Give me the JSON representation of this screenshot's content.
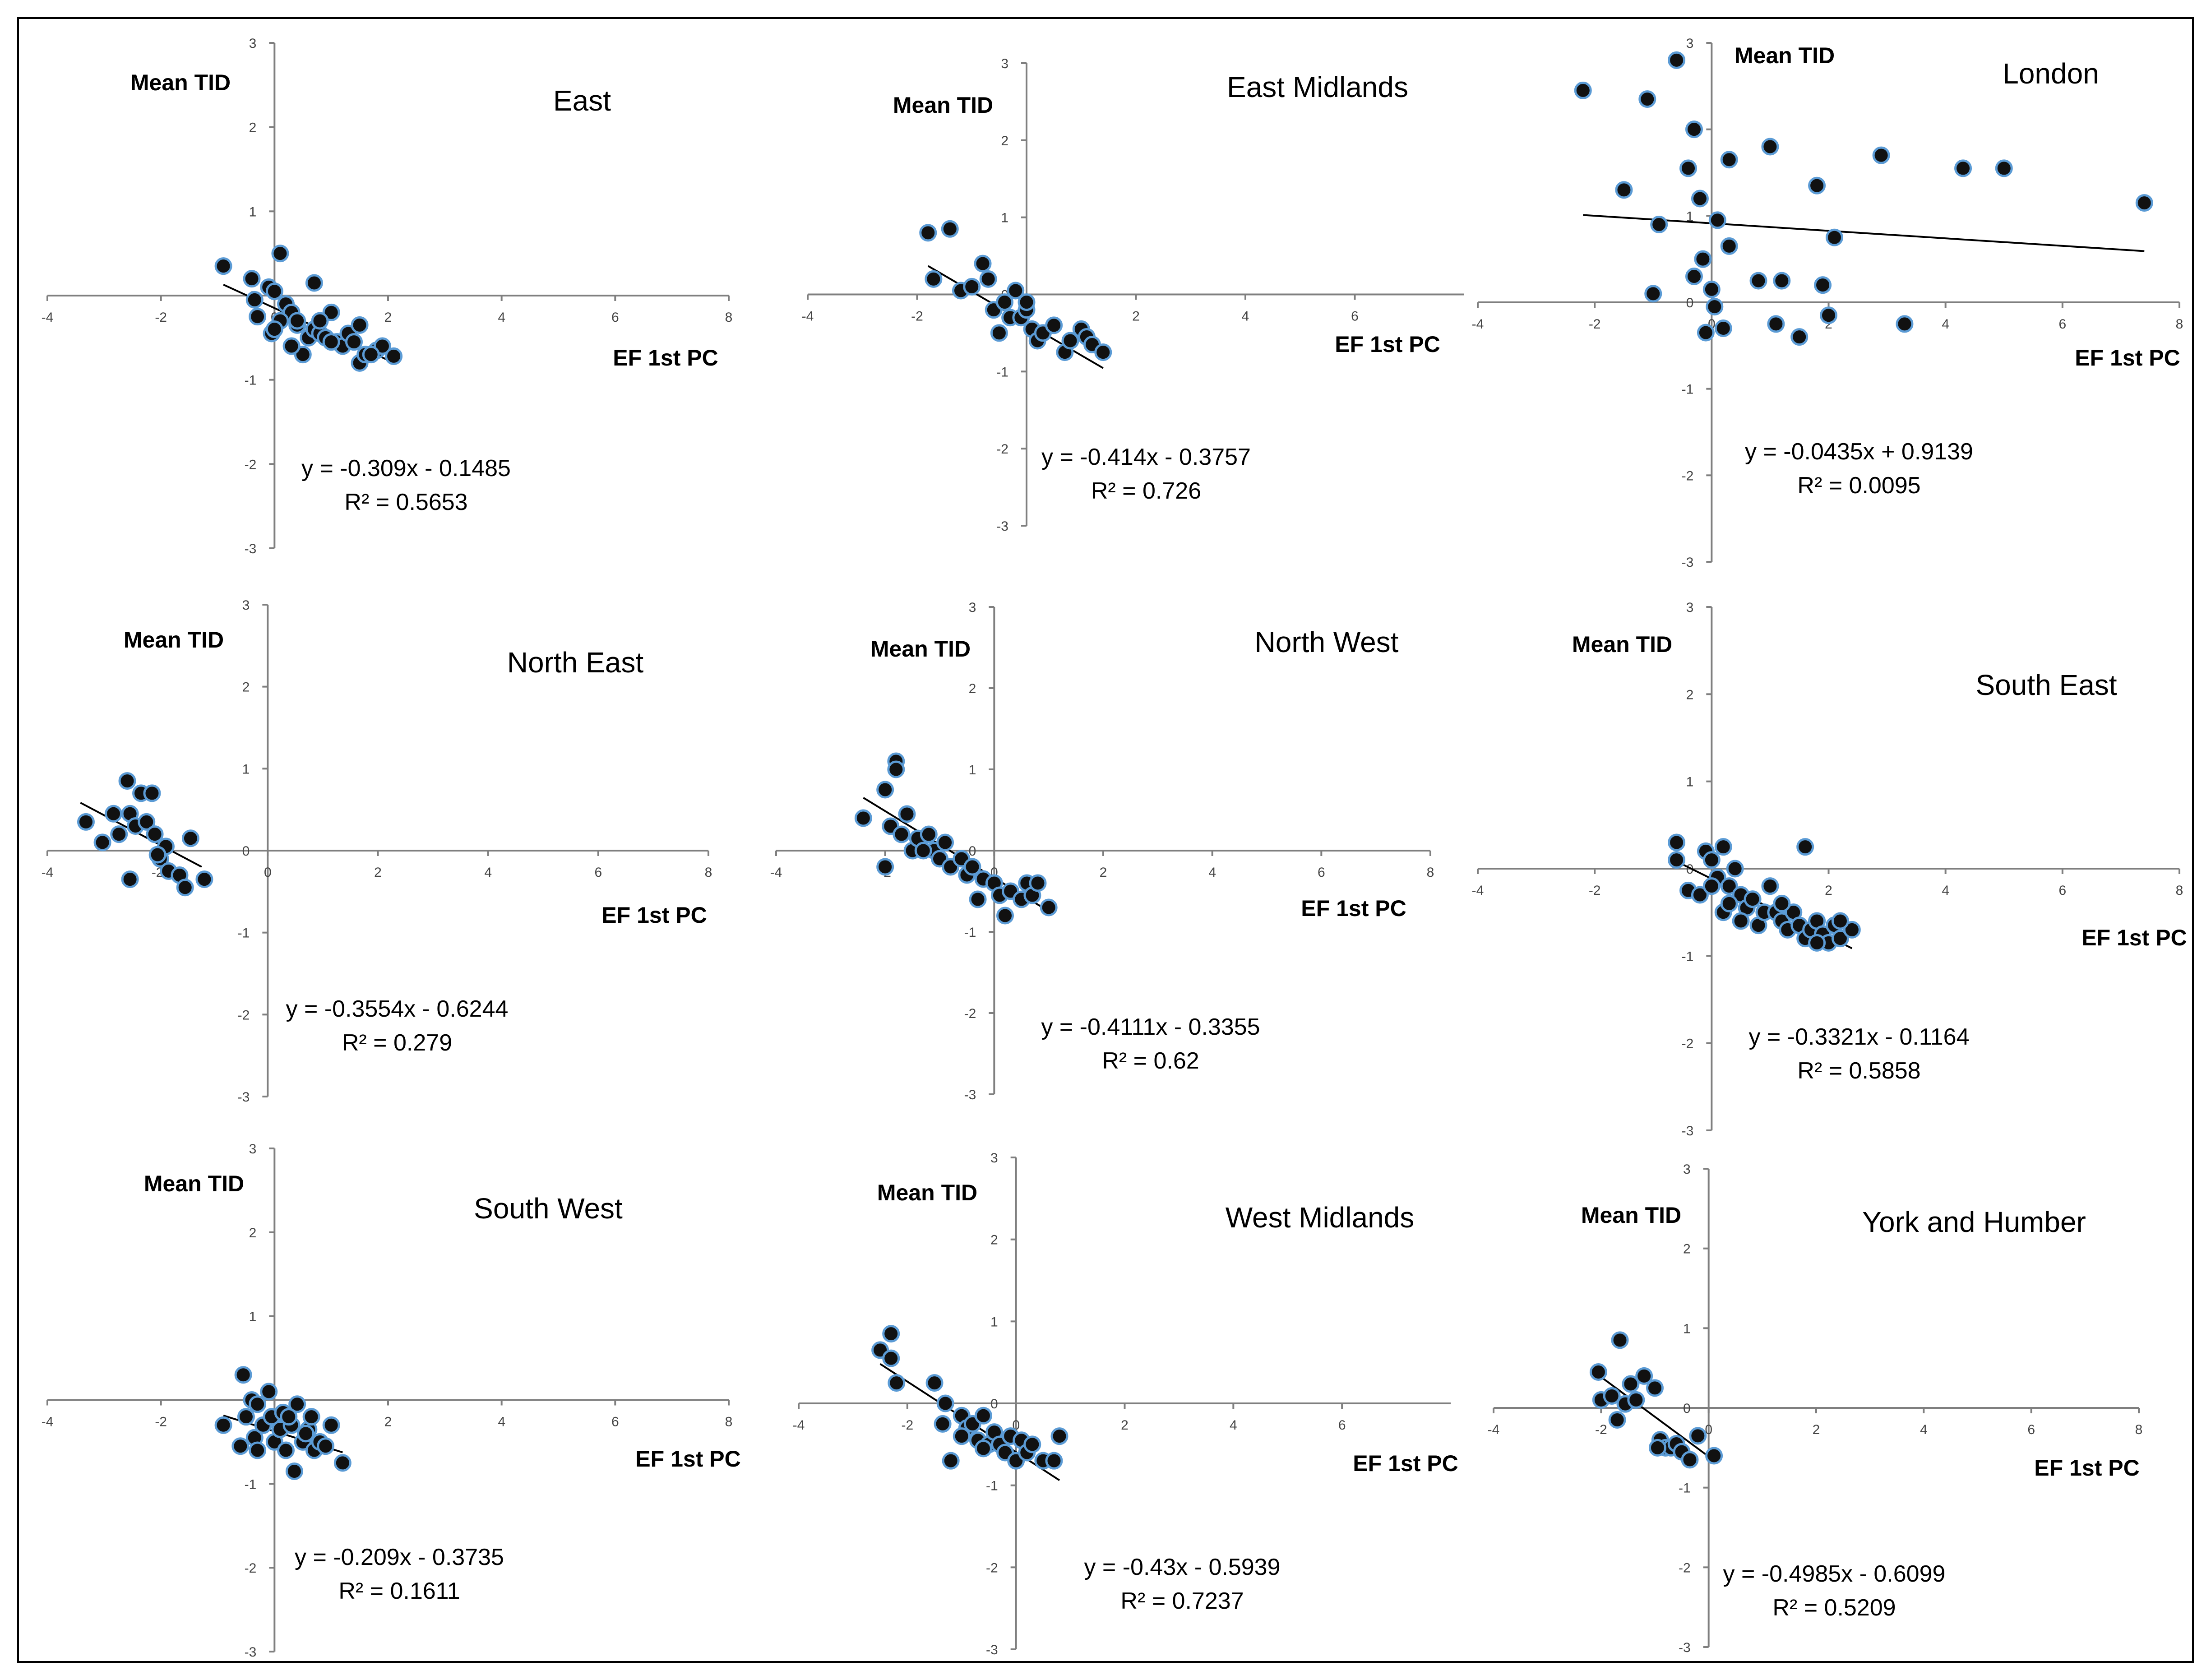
{
  "axis_labels": {
    "x": "EF 1st PC",
    "y": "Mean TID"
  },
  "colors": {
    "marker_fill": "#111111",
    "marker_edge": "#5b9bd5",
    "axis": "#7f7f7f",
    "trendline": "#000000"
  },
  "chart_data": [
    {
      "type": "scatter",
      "title": "East",
      "xlabel": "EF 1st PC",
      "ylabel": "Mean TID",
      "xlim": [
        -4,
        8
      ],
      "ylim": [
        -3,
        3
      ],
      "x_ticks": [
        -4,
        -2,
        0,
        2,
        4,
        6,
        8
      ],
      "y_ticks": [
        -3,
        -2,
        -1,
        0,
        1,
        2,
        3
      ],
      "equation": "y = -0.309x - 0.1485",
      "r2": "R² = 0.5653",
      "trend": {
        "slope": -0.309,
        "intercept": -0.1485,
        "x_range": [
          -0.9,
          2.1
        ]
      },
      "points": [
        [
          -0.9,
          0.35
        ],
        [
          -0.4,
          0.2
        ],
        [
          -0.35,
          -0.05
        ],
        [
          -0.3,
          -0.25
        ],
        [
          -0.1,
          0.1
        ],
        [
          0.0,
          0.05
        ],
        [
          0.1,
          0.5
        ],
        [
          -0.05,
          -0.45
        ],
        [
          0.2,
          -0.1
        ],
        [
          0.3,
          -0.2
        ],
        [
          0.1,
          -0.3
        ],
        [
          0.4,
          -0.35
        ],
        [
          0.5,
          -0.7
        ],
        [
          0.6,
          -0.5
        ],
        [
          0.7,
          -0.4
        ],
        [
          0.8,
          -0.45
        ],
        [
          0.9,
          -0.5
        ],
        [
          1.0,
          -0.2
        ],
        [
          1.1,
          -0.55
        ],
        [
          1.2,
          -0.6
        ],
        [
          1.3,
          -0.45
        ],
        [
          1.4,
          -0.55
        ],
        [
          1.5,
          -0.35
        ],
        [
          1.5,
          -0.8
        ],
        [
          1.6,
          -0.7
        ],
        [
          1.8,
          -0.65
        ],
        [
          1.9,
          -0.6
        ],
        [
          2.1,
          -0.72
        ],
        [
          0.7,
          0.15
        ],
        [
          0.0,
          -0.4
        ],
        [
          0.3,
          -0.6
        ],
        [
          0.8,
          -0.3
        ],
        [
          1.0,
          -0.55
        ],
        [
          1.7,
          -0.7
        ],
        [
          0.4,
          -0.3
        ]
      ]
    },
    {
      "type": "scatter",
      "title": "East Midlands",
      "xlabel": "EF 1st PC",
      "ylabel": "Mean TID",
      "xlim": [
        -4,
        8
      ],
      "ylim": [
        -3,
        3
      ],
      "x_ticks": [
        -4,
        -2,
        0,
        2,
        4,
        6
      ],
      "y_ticks": [
        -3,
        -2,
        -1,
        0,
        1,
        2,
        3
      ],
      "equation": "y = -0.414x - 0.3757",
      "r2": "R² = 0.726",
      "trend": {
        "slope": -0.414,
        "intercept": -0.3757,
        "x_range": [
          -1.8,
          1.4
        ]
      },
      "points": [
        [
          -1.8,
          0.8
        ],
        [
          -1.7,
          0.2
        ],
        [
          -1.4,
          0.85
        ],
        [
          -1.2,
          0.05
        ],
        [
          -1.0,
          0.1
        ],
        [
          -0.8,
          0.4
        ],
        [
          -0.7,
          0.2
        ],
        [
          -0.6,
          -0.2
        ],
        [
          -0.4,
          -0.1
        ],
        [
          -0.3,
          -0.3
        ],
        [
          -0.2,
          0.05
        ],
        [
          -0.1,
          -0.3
        ],
        [
          0.0,
          -0.2
        ],
        [
          0.1,
          -0.45
        ],
        [
          0.2,
          -0.6
        ],
        [
          0.3,
          -0.5
        ],
        [
          0.5,
          -0.4
        ],
        [
          0.7,
          -0.75
        ],
        [
          0.8,
          -0.6
        ],
        [
          1.0,
          -0.45
        ],
        [
          1.1,
          -0.55
        ],
        [
          1.2,
          -0.65
        ],
        [
          1.4,
          -0.75
        ],
        [
          -0.5,
          -0.5
        ],
        [
          0.0,
          -0.1
        ]
      ]
    },
    {
      "type": "scatter",
      "title": "London",
      "xlabel": "EF 1st PC",
      "ylabel": "Mean TID",
      "xlim": [
        -4,
        8
      ],
      "ylim": [
        -3,
        3
      ],
      "x_ticks": [
        -4,
        -2,
        0,
        2,
        4,
        6,
        8
      ],
      "y_ticks": [
        -3,
        -2,
        -1,
        0,
        1,
        2,
        3
      ],
      "equation": "y = -0.0435x + 0.9139",
      "r2": "R² = 0.0095",
      "trend": {
        "slope": -0.0435,
        "intercept": 0.9139,
        "x_range": [
          -2.2,
          7.4
        ]
      },
      "points": [
        [
          -2.2,
          2.45
        ],
        [
          -1.5,
          1.3
        ],
        [
          -1.1,
          2.35
        ],
        [
          -0.6,
          2.8
        ],
        [
          -0.9,
          0.9
        ],
        [
          -0.4,
          1.55
        ],
        [
          -0.3,
          2.0
        ],
        [
          -0.2,
          1.2
        ],
        [
          0.1,
          0.95
        ],
        [
          0.3,
          1.65
        ],
        [
          -0.3,
          0.3
        ],
        [
          -0.15,
          0.5
        ],
        [
          0.0,
          0.15
        ],
        [
          0.05,
          -0.05
        ],
        [
          -0.1,
          -0.35
        ],
        [
          0.2,
          -0.3
        ],
        [
          0.3,
          0.65
        ],
        [
          0.8,
          0.25
        ],
        [
          1.0,
          1.8
        ],
        [
          1.2,
          0.25
        ],
        [
          1.1,
          -0.25
        ],
        [
          1.5,
          -0.4
        ],
        [
          1.8,
          1.35
        ],
        [
          1.9,
          0.2
        ],
        [
          2.0,
          -0.15
        ],
        [
          2.1,
          0.75
        ],
        [
          2.9,
          1.7
        ],
        [
          3.3,
          -0.25
        ],
        [
          4.3,
          1.55
        ],
        [
          5.0,
          1.55
        ],
        [
          7.4,
          1.15
        ],
        [
          -1.0,
          0.1
        ]
      ]
    },
    {
      "type": "scatter",
      "title": "North East",
      "xlabel": "EF 1st PC",
      "ylabel": "Mean TID",
      "xlim": [
        -4,
        8
      ],
      "ylim": [
        -3,
        3
      ],
      "x_ticks": [
        -4,
        -2,
        0,
        2,
        4,
        6,
        8
      ],
      "y_ticks": [
        -3,
        -2,
        -1,
        0,
        1,
        2,
        3
      ],
      "equation": "y = -0.3554x - 0.6244",
      "r2": "R² = 0.279",
      "trend": {
        "slope": -0.3554,
        "intercept": -0.6244,
        "x_range": [
          -3.4,
          -1.2
        ]
      },
      "points": [
        [
          -3.3,
          0.35
        ],
        [
          -3.0,
          0.1
        ],
        [
          -2.8,
          0.45
        ],
        [
          -2.7,
          0.2
        ],
        [
          -2.55,
          0.85
        ],
        [
          -2.5,
          0.45
        ],
        [
          -2.4,
          0.3
        ],
        [
          -2.3,
          0.7
        ],
        [
          -2.2,
          0.35
        ],
        [
          -2.1,
          0.7
        ],
        [
          -2.05,
          0.2
        ],
        [
          -1.95,
          -0.1
        ],
        [
          -1.85,
          0.05
        ],
        [
          -1.8,
          -0.25
        ],
        [
          -1.6,
          -0.3
        ],
        [
          -1.5,
          -0.45
        ],
        [
          -1.4,
          0.15
        ],
        [
          -1.15,
          -0.35
        ],
        [
          -2.5,
          -0.35
        ],
        [
          -2.0,
          -0.05
        ]
      ]
    },
    {
      "type": "scatter",
      "title": "North West",
      "xlabel": "EF 1st PC",
      "ylabel": "Mean TID",
      "xlim": [
        -4,
        8
      ],
      "ylim": [
        -3,
        3
      ],
      "x_ticks": [
        -4,
        -2,
        0,
        2,
        4,
        6,
        8
      ],
      "y_ticks": [
        -3,
        -2,
        -1,
        0,
        1,
        2,
        3
      ],
      "equation": "y = -0.4111x - 0.3355",
      "r2": "R² = 0.62",
      "trend": {
        "slope": -0.4111,
        "intercept": -0.3355,
        "x_range": [
          -2.4,
          1.0
        ]
      },
      "points": [
        [
          -2.4,
          0.4
        ],
        [
          -2.0,
          0.75
        ],
        [
          -1.8,
          1.1
        ],
        [
          -1.8,
          1.0
        ],
        [
          -1.9,
          0.3
        ],
        [
          -1.7,
          0.2
        ],
        [
          -1.6,
          0.45
        ],
        [
          -1.5,
          0.0
        ],
        [
          -1.4,
          0.15
        ],
        [
          -1.2,
          0.2
        ],
        [
          -1.1,
          0.0
        ],
        [
          -1.0,
          -0.1
        ],
        [
          -0.9,
          0.1
        ],
        [
          -0.8,
          -0.2
        ],
        [
          -0.6,
          -0.1
        ],
        [
          -0.5,
          -0.3
        ],
        [
          -0.4,
          -0.2
        ],
        [
          -0.3,
          -0.6
        ],
        [
          -0.2,
          -0.35
        ],
        [
          0.0,
          -0.4
        ],
        [
          0.1,
          -0.55
        ],
        [
          0.2,
          -0.8
        ],
        [
          0.3,
          -0.5
        ],
        [
          0.5,
          -0.6
        ],
        [
          0.6,
          -0.4
        ],
        [
          0.7,
          -0.55
        ],
        [
          0.8,
          -0.4
        ],
        [
          1.0,
          -0.7
        ],
        [
          -2.0,
          -0.2
        ],
        [
          -1.3,
          0.0
        ]
      ]
    },
    {
      "type": "scatter",
      "title": "South East",
      "xlabel": "EF 1st PC",
      "ylabel": "Mean TID",
      "xlim": [
        -4,
        8
      ],
      "ylim": [
        -3,
        3
      ],
      "x_ticks": [
        -4,
        -2,
        0,
        2,
        4,
        6,
        8
      ],
      "y_ticks": [
        -3,
        -2,
        -1,
        0,
        1,
        2,
        3
      ],
      "equation": "y = -0.3321x - 0.1164",
      "r2": "R² = 0.5858",
      "trend": {
        "slope": -0.3321,
        "intercept": -0.1164,
        "x_range": [
          -0.6,
          2.4
        ]
      },
      "points": [
        [
          -0.6,
          0.3
        ],
        [
          -0.6,
          0.1
        ],
        [
          -0.4,
          -0.25
        ],
        [
          -0.2,
          -0.3
        ],
        [
          -0.1,
          0.2
        ],
        [
          0.0,
          0.1
        ],
        [
          0.1,
          -0.1
        ],
        [
          0.2,
          0.25
        ],
        [
          0.2,
          -0.5
        ],
        [
          0.3,
          -0.2
        ],
        [
          0.4,
          0.0
        ],
        [
          0.5,
          -0.3
        ],
        [
          0.6,
          -0.45
        ],
        [
          0.7,
          -0.35
        ],
        [
          0.8,
          -0.65
        ],
        [
          0.9,
          -0.5
        ],
        [
          1.0,
          -0.2
        ],
        [
          1.1,
          -0.5
        ],
        [
          1.2,
          -0.6
        ],
        [
          1.3,
          -0.7
        ],
        [
          1.4,
          -0.5
        ],
        [
          1.5,
          -0.65
        ],
        [
          1.6,
          -0.8
        ],
        [
          1.6,
          0.25
        ],
        [
          1.7,
          -0.7
        ],
        [
          1.8,
          -0.6
        ],
        [
          1.9,
          -0.75
        ],
        [
          2.0,
          -0.85
        ],
        [
          2.1,
          -0.65
        ],
        [
          2.2,
          -0.8
        ],
        [
          2.4,
          -0.7
        ],
        [
          0.0,
          -0.2
        ],
        [
          0.5,
          -0.6
        ],
        [
          1.2,
          -0.4
        ],
        [
          1.8,
          -0.85
        ],
        [
          2.2,
          -0.6
        ],
        [
          0.3,
          -0.4
        ]
      ]
    },
    {
      "type": "scatter",
      "title": "South West",
      "xlabel": "EF 1st PC",
      "ylabel": "Mean TID",
      "xlim": [
        -4,
        8
      ],
      "ylim": [
        -3,
        3
      ],
      "x_ticks": [
        -4,
        -2,
        0,
        2,
        4,
        6,
        8
      ],
      "y_ticks": [
        -3,
        -2,
        -1,
        0,
        1,
        2,
        3
      ],
      "equation": "y = -0.209x - 0.3735",
      "r2": "R² = 0.1611",
      "trend": {
        "slope": -0.209,
        "intercept": -0.3735,
        "x_range": [
          -0.9,
          1.2
        ]
      },
      "points": [
        [
          -0.9,
          -0.3
        ],
        [
          -0.6,
          -0.55
        ],
        [
          -0.55,
          0.3
        ],
        [
          -0.5,
          -0.2
        ],
        [
          -0.4,
          0.0
        ],
        [
          -0.35,
          -0.45
        ],
        [
          -0.3,
          -0.6
        ],
        [
          -0.2,
          -0.3
        ],
        [
          -0.1,
          0.1
        ],
        [
          -0.05,
          -0.2
        ],
        [
          0.0,
          -0.5
        ],
        [
          0.1,
          -0.35
        ],
        [
          0.15,
          -0.15
        ],
        [
          0.2,
          -0.6
        ],
        [
          0.3,
          -0.3
        ],
        [
          0.35,
          -0.85
        ],
        [
          0.4,
          -0.05
        ],
        [
          0.5,
          -0.5
        ],
        [
          0.6,
          -0.35
        ],
        [
          0.7,
          -0.6
        ],
        [
          0.8,
          -0.5
        ],
        [
          0.9,
          -0.55
        ],
        [
          1.0,
          -0.3
        ],
        [
          1.2,
          -0.75
        ],
        [
          -0.3,
          -0.05
        ],
        [
          0.25,
          -0.2
        ],
        [
          0.55,
          -0.4
        ],
        [
          0.65,
          -0.2
        ]
      ]
    },
    {
      "type": "scatter",
      "title": "West Midlands",
      "xlabel": "EF 1st PC",
      "ylabel": "Mean TID",
      "xlim": [
        -4,
        8
      ],
      "ylim": [
        -3,
        3
      ],
      "x_ticks": [
        -4,
        -2,
        0,
        2,
        4,
        6
      ],
      "y_ticks": [
        -3,
        -2,
        -1,
        0,
        1,
        2,
        3
      ],
      "equation": "y = -0.43x - 0.5939",
      "r2": "R² = 0.7237",
      "trend": {
        "slope": -0.43,
        "intercept": -0.5939,
        "x_range": [
          -2.5,
          0.8
        ]
      },
      "points": [
        [
          -2.5,
          0.65
        ],
        [
          -2.3,
          0.85
        ],
        [
          -2.2,
          0.25
        ],
        [
          -2.3,
          0.55
        ],
        [
          -1.5,
          0.25
        ],
        [
          -1.3,
          0.0
        ],
        [
          -1.35,
          -0.25
        ],
        [
          -1.2,
          -0.7
        ],
        [
          -1.0,
          -0.15
        ],
        [
          -0.9,
          -0.3
        ],
        [
          -0.8,
          -0.25
        ],
        [
          -0.7,
          -0.45
        ],
        [
          -0.6,
          -0.15
        ],
        [
          -0.5,
          -0.5
        ],
        [
          -0.4,
          -0.35
        ],
        [
          -0.3,
          -0.5
        ],
        [
          -0.2,
          -0.6
        ],
        [
          -0.1,
          -0.4
        ],
        [
          0.0,
          -0.7
        ],
        [
          0.1,
          -0.45
        ],
        [
          0.2,
          -0.6
        ],
        [
          0.3,
          -0.5
        ],
        [
          0.5,
          -0.7
        ],
        [
          0.7,
          -0.7
        ],
        [
          0.8,
          -0.4
        ],
        [
          -1.0,
          -0.4
        ],
        [
          -0.6,
          -0.55
        ]
      ]
    },
    {
      "type": "scatter",
      "title": "York and Humber",
      "xlabel": "EF 1st PC",
      "ylabel": "Mean TID",
      "xlim": [
        -4,
        8
      ],
      "ylim": [
        -3,
        3
      ],
      "x_ticks": [
        -4,
        -2,
        0,
        2,
        4,
        6,
        8
      ],
      "y_ticks": [
        -3,
        -2,
        -1,
        0,
        1,
        2,
        3
      ],
      "equation": "y = -0.4985x - 0.6099",
      "r2": "R² = 0.5209",
      "trend": {
        "slope": -0.4985,
        "intercept": -0.6099,
        "x_range": [
          -2.1,
          0.1
        ]
      },
      "points": [
        [
          -2.05,
          0.45
        ],
        [
          -2.0,
          0.1
        ],
        [
          -1.8,
          0.15
        ],
        [
          -1.7,
          -0.15
        ],
        [
          -1.65,
          0.85
        ],
        [
          -1.55,
          0.05
        ],
        [
          -1.45,
          0.3
        ],
        [
          -1.35,
          0.1
        ],
        [
          -1.2,
          0.4
        ],
        [
          -1.0,
          0.25
        ],
        [
          -0.9,
          -0.4
        ],
        [
          -0.8,
          -0.5
        ],
        [
          -0.7,
          -0.5
        ],
        [
          -0.6,
          -0.45
        ],
        [
          -0.5,
          -0.55
        ],
        [
          -0.35,
          -0.65
        ],
        [
          -0.2,
          -0.35
        ],
        [
          0.1,
          -0.6
        ],
        [
          -0.95,
          -0.5
        ]
      ]
    }
  ]
}
